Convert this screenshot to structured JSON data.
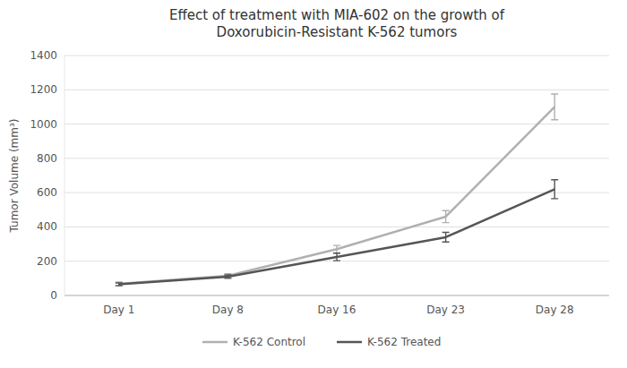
{
  "chart_data": {
    "type": "line",
    "title": "Effect of treatment with MIA-602 on the growth of\nDoxorubicin-Resistant K-562 tumors",
    "y_label": "Tumor Volume (mm³)",
    "categories": [
      "Day 1",
      "Day 8",
      "Day 16",
      "Day 23",
      "Day 28"
    ],
    "series": [
      {
        "name": "K-562 Control",
        "color": "#b0b0b0",
        "values": [
          68,
          115,
          270,
          460,
          1100
        ],
        "errors": [
          10,
          12,
          22,
          35,
          75
        ]
      },
      {
        "name": "K-562 Treated",
        "color": "#555555",
        "values": [
          65,
          110,
          225,
          340,
          620
        ],
        "errors": [
          8,
          10,
          22,
          28,
          55
        ]
      }
    ],
    "ylim": [
      0,
      1400
    ],
    "yticks": [
      0,
      200,
      400,
      600,
      800,
      1000,
      1200,
      1400
    ],
    "grid": true,
    "legend": "bottom"
  }
}
